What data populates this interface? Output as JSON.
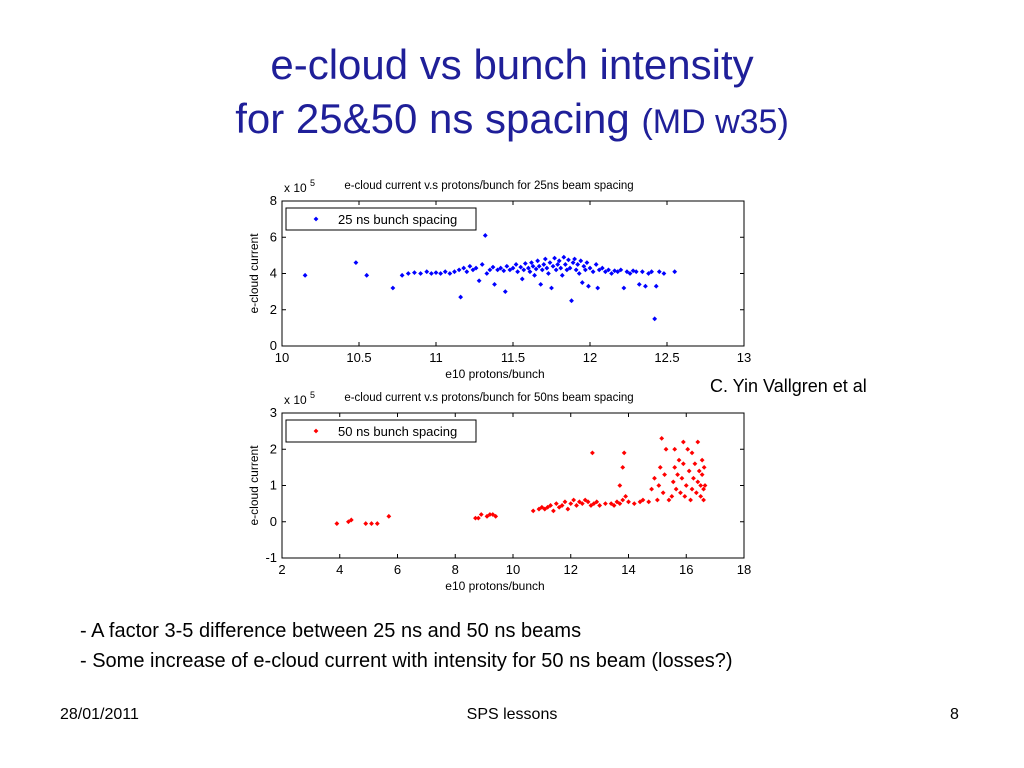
{
  "slide": {
    "title_line1": "e-cloud vs bunch intensity",
    "title_line2_main": "for 25&50 ns spacing",
    "title_line2_small": "(MD w35)",
    "credit": "C. Yin Vallgren et al",
    "bullets": [
      "-  A factor 3-5 difference between 25 ns and 50 ns beams",
      "- Some increase of e-cloud current with intensity for 50 ns beam (losses?)"
    ],
    "footer": {
      "date": "28/01/2011",
      "center": "SPS lessons",
      "page": "8"
    }
  },
  "chart_data": [
    {
      "type": "scatter",
      "title": "e-cloud current v.s protons/bunch for 25ns beam spacing",
      "xlabel": "e10 protons/bunch",
      "ylabel": "e-cloud current",
      "y_multiplier": "x 10",
      "y_multiplier_exp": "5",
      "xlim": [
        10,
        13
      ],
      "ylim": [
        0,
        8
      ],
      "xticks": [
        10,
        10.5,
        11,
        11.5,
        12,
        12.5,
        13
      ],
      "yticks": [
        0,
        2,
        4,
        6,
        8
      ],
      "legend_position": "top-left",
      "color": "#0000ff",
      "series": [
        {
          "name": "25 ns bunch spacing",
          "points": [
            [
              10.15,
              3.9
            ],
            [
              10.48,
              4.6
            ],
            [
              10.55,
              3.9
            ],
            [
              10.72,
              3.2
            ],
            [
              10.78,
              3.9
            ],
            [
              10.82,
              4.0
            ],
            [
              10.86,
              4.05
            ],
            [
              10.9,
              4.0
            ],
            [
              10.94,
              4.1
            ],
            [
              10.97,
              4.0
            ],
            [
              11.0,
              4.05
            ],
            [
              11.03,
              4.0
            ],
            [
              11.06,
              4.1
            ],
            [
              11.09,
              4.0
            ],
            [
              11.12,
              4.1
            ],
            [
              11.15,
              4.2
            ],
            [
              11.16,
              2.7
            ],
            [
              11.18,
              4.3
            ],
            [
              11.2,
              4.1
            ],
            [
              11.22,
              4.4
            ],
            [
              11.24,
              4.2
            ],
            [
              11.26,
              4.3
            ],
            [
              11.28,
              3.6
            ],
            [
              11.3,
              4.5
            ],
            [
              11.32,
              6.1
            ],
            [
              11.33,
              4.0
            ],
            [
              11.35,
              4.2
            ],
            [
              11.37,
              4.35
            ],
            [
              11.38,
              3.4
            ],
            [
              11.4,
              4.2
            ],
            [
              11.42,
              4.3
            ],
            [
              11.44,
              4.15
            ],
            [
              11.45,
              3.0
            ],
            [
              11.46,
              4.4
            ],
            [
              11.48,
              4.2
            ],
            [
              11.5,
              4.3
            ],
            [
              11.52,
              4.5
            ],
            [
              11.53,
              4.1
            ],
            [
              11.55,
              4.35
            ],
            [
              11.56,
              3.7
            ],
            [
              11.57,
              4.2
            ],
            [
              11.58,
              4.55
            ],
            [
              11.6,
              4.3
            ],
            [
              11.61,
              4.1
            ],
            [
              11.62,
              4.6
            ],
            [
              11.63,
              4.4
            ],
            [
              11.64,
              3.9
            ],
            [
              11.65,
              4.25
            ],
            [
              11.66,
              4.7
            ],
            [
              11.67,
              4.4
            ],
            [
              11.68,
              3.4
            ],
            [
              11.69,
              4.2
            ],
            [
              11.7,
              4.5
            ],
            [
              11.71,
              4.8
            ],
            [
              11.72,
              4.3
            ],
            [
              11.73,
              4.0
            ],
            [
              11.74,
              4.6
            ],
            [
              11.75,
              3.2
            ],
            [
              11.76,
              4.4
            ],
            [
              11.77,
              4.85
            ],
            [
              11.78,
              4.2
            ],
            [
              11.79,
              4.5
            ],
            [
              11.8,
              4.7
            ],
            [
              11.81,
              4.3
            ],
            [
              11.82,
              3.9
            ],
            [
              11.83,
              4.9
            ],
            [
              11.84,
              4.5
            ],
            [
              11.85,
              4.2
            ],
            [
              11.86,
              4.75
            ],
            [
              11.87,
              4.3
            ],
            [
              11.88,
              2.5
            ],
            [
              11.89,
              4.6
            ],
            [
              11.9,
              4.8
            ],
            [
              11.91,
              4.2
            ],
            [
              11.92,
              4.5
            ],
            [
              11.93,
              4.0
            ],
            [
              11.94,
              4.7
            ],
            [
              11.95,
              3.5
            ],
            [
              11.96,
              4.4
            ],
            [
              11.97,
              4.2
            ],
            [
              11.98,
              4.6
            ],
            [
              11.99,
              3.3
            ],
            [
              12.0,
              4.3
            ],
            [
              12.02,
              4.1
            ],
            [
              12.04,
              4.5
            ],
            [
              12.05,
              3.2
            ],
            [
              12.06,
              4.2
            ],
            [
              12.08,
              4.3
            ],
            [
              12.1,
              4.1
            ],
            [
              12.12,
              4.2
            ],
            [
              12.14,
              4.0
            ],
            [
              12.16,
              4.15
            ],
            [
              12.18,
              4.1
            ],
            [
              12.2,
              4.2
            ],
            [
              12.22,
              3.2
            ],
            [
              12.24,
              4.1
            ],
            [
              12.26,
              4.0
            ],
            [
              12.28,
              4.15
            ],
            [
              12.3,
              4.1
            ],
            [
              12.32,
              3.4
            ],
            [
              12.34,
              4.1
            ],
            [
              12.36,
              3.3
            ],
            [
              12.38,
              4.0
            ],
            [
              12.4,
              4.1
            ],
            [
              12.43,
              3.3
            ],
            [
              12.45,
              4.1
            ],
            [
              12.48,
              4.0
            ],
            [
              12.42,
              1.5
            ],
            [
              12.55,
              4.1
            ]
          ]
        }
      ]
    },
    {
      "type": "scatter",
      "title": "e-cloud current v.s protons/bunch for 50ns beam spacing",
      "xlabel": "e10 protons/bunch",
      "ylabel": "e-cloud current",
      "y_multiplier": "x 10",
      "y_multiplier_exp": "5",
      "xlim": [
        2,
        18
      ],
      "ylim": [
        -1,
        3
      ],
      "xticks": [
        2,
        4,
        6,
        8,
        10,
        12,
        14,
        16,
        18
      ],
      "yticks": [
        -1,
        0,
        1,
        2,
        3
      ],
      "legend_position": "top-left",
      "color": "#ff0000",
      "series": [
        {
          "name": "50 ns bunch spacing",
          "points": [
            [
              3.9,
              -0.05
            ],
            [
              4.3,
              0.0
            ],
            [
              4.4,
              0.05
            ],
            [
              4.9,
              -0.05
            ],
            [
              5.1,
              -0.05
            ],
            [
              5.3,
              -0.05
            ],
            [
              5.7,
              0.15
            ],
            [
              8.7,
              0.1
            ],
            [
              8.8,
              0.1
            ],
            [
              8.9,
              0.2
            ],
            [
              9.1,
              0.15
            ],
            [
              9.2,
              0.2
            ],
            [
              9.3,
              0.2
            ],
            [
              9.4,
              0.15
            ],
            [
              10.7,
              0.3
            ],
            [
              10.9,
              0.35
            ],
            [
              11.0,
              0.4
            ],
            [
              11.1,
              0.35
            ],
            [
              11.2,
              0.4
            ],
            [
              11.3,
              0.45
            ],
            [
              11.4,
              0.3
            ],
            [
              11.5,
              0.5
            ],
            [
              11.6,
              0.4
            ],
            [
              11.7,
              0.45
            ],
            [
              11.8,
              0.55
            ],
            [
              11.9,
              0.35
            ],
            [
              12.0,
              0.5
            ],
            [
              12.1,
              0.6
            ],
            [
              12.2,
              0.45
            ],
            [
              12.3,
              0.55
            ],
            [
              12.4,
              0.5
            ],
            [
              12.5,
              0.6
            ],
            [
              12.6,
              0.55
            ],
            [
              12.7,
              0.45
            ],
            [
              12.8,
              0.5
            ],
            [
              12.9,
              0.55
            ],
            [
              12.75,
              1.9
            ],
            [
              13.0,
              0.45
            ],
            [
              13.2,
              0.5
            ],
            [
              13.4,
              0.5
            ],
            [
              13.5,
              0.45
            ],
            [
              13.6,
              0.55
            ],
            [
              13.7,
              0.5
            ],
            [
              13.8,
              0.6
            ],
            [
              13.7,
              1.0
            ],
            [
              13.8,
              1.5
            ],
            [
              13.85,
              1.9
            ],
            [
              13.9,
              0.7
            ],
            [
              14.0,
              0.55
            ],
            [
              14.2,
              0.5
            ],
            [
              14.4,
              0.55
            ],
            [
              14.5,
              0.6
            ],
            [
              14.7,
              0.55
            ],
            [
              14.8,
              0.9
            ],
            [
              14.9,
              1.2
            ],
            [
              15.0,
              0.6
            ],
            [
              15.05,
              1.0
            ],
            [
              15.1,
              1.5
            ],
            [
              15.15,
              2.3
            ],
            [
              15.2,
              0.8
            ],
            [
              15.25,
              1.3
            ],
            [
              15.3,
              2.0
            ],
            [
              15.4,
              0.6
            ],
            [
              15.5,
              0.7
            ],
            [
              15.55,
              1.1
            ],
            [
              15.6,
              1.5
            ],
            [
              15.65,
              0.9
            ],
            [
              15.7,
              1.3
            ],
            [
              15.75,
              1.7
            ],
            [
              15.8,
              0.8
            ],
            [
              15.85,
              1.2
            ],
            [
              15.9,
              1.6
            ],
            [
              15.95,
              0.7
            ],
            [
              16.0,
              1.0
            ],
            [
              16.05,
              2.0
            ],
            [
              16.1,
              1.4
            ],
            [
              16.15,
              0.6
            ],
            [
              16.2,
              0.9
            ],
            [
              16.25,
              1.2
            ],
            [
              16.3,
              1.6
            ],
            [
              16.35,
              0.8
            ],
            [
              16.4,
              1.1
            ],
            [
              16.45,
              1.4
            ],
            [
              16.5,
              0.7
            ],
            [
              16.55,
              1.3
            ],
            [
              16.6,
              0.9
            ],
            [
              16.65,
              1.0
            ],
            [
              16.55,
              1.7
            ],
            [
              16.6,
              0.6
            ],
            [
              16.4,
              2.2
            ],
            [
              16.2,
              1.9
            ],
            [
              15.9,
              2.2
            ],
            [
              15.6,
              2.0
            ],
            [
              16.62,
              1.5
            ],
            [
              16.5,
              1.0
            ]
          ]
        }
      ]
    }
  ]
}
